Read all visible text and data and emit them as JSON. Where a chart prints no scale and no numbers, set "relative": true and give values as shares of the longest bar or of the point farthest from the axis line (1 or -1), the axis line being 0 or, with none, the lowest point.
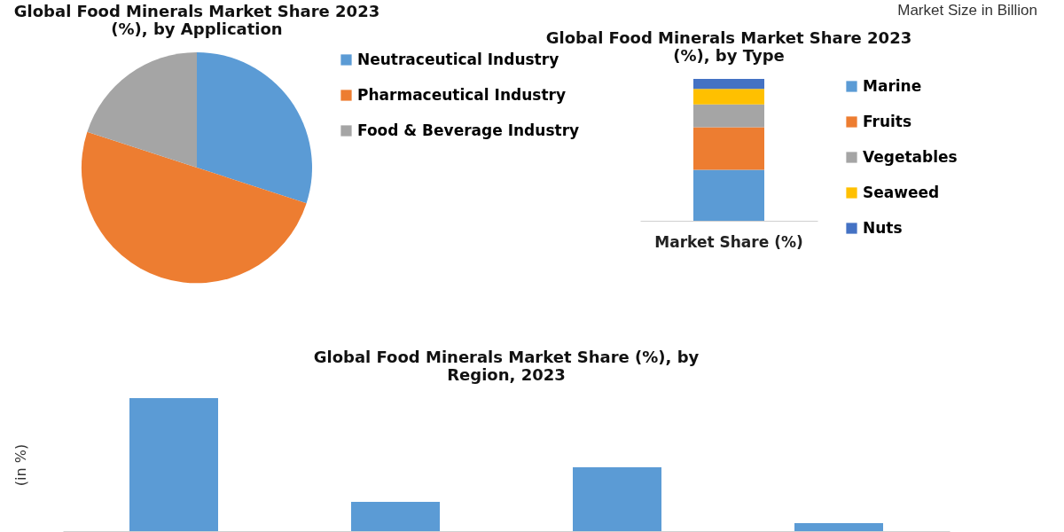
{
  "chart_data": [
    {
      "type": "pie",
      "title": "Global Food Minerals Market Share 2023 (%), by Application",
      "categories": [
        "Neutraceutical Industry",
        "Pharmaceutical Industry",
        "Food & Beverage Industry"
      ],
      "values": [
        30,
        50,
        20
      ],
      "colors": [
        "#5b9bd5",
        "#ed7d31",
        "#a5a5a5"
      ],
      "legend": "right"
    },
    {
      "type": "bar",
      "title": "Global Food Minerals Market Share 2023 (%), by Type",
      "annotations": [
        "Market Size in Billion"
      ],
      "categories": [
        "Market Share (%)"
      ],
      "stacked": true,
      "relative": true,
      "legend": "right",
      "series": [
        {
          "name": "Marine",
          "color": "#5b9bd5",
          "values": [
            0.36
          ]
        },
        {
          "name": "Fruits",
          "color": "#ed7d31",
          "values": [
            0.3
          ]
        },
        {
          "name": "Vegetables",
          "color": "#a5a5a5",
          "values": [
            0.16
          ]
        },
        {
          "name": "Seaweed",
          "color": "#ffc000",
          "values": [
            0.11
          ]
        },
        {
          "name": "Nuts",
          "color": "#4472c4",
          "values": [
            0.07
          ]
        }
      ]
    },
    {
      "type": "bar",
      "title": "Global Food Minerals Market Share (%), by Region, 2023",
      "ylabel": "(in %)",
      "categories": [
        null,
        null,
        null,
        null
      ],
      "values": [
        1,
        0.22,
        0.48,
        0.06
      ],
      "color": "#5b9bd5",
      "relative": true
    }
  ]
}
